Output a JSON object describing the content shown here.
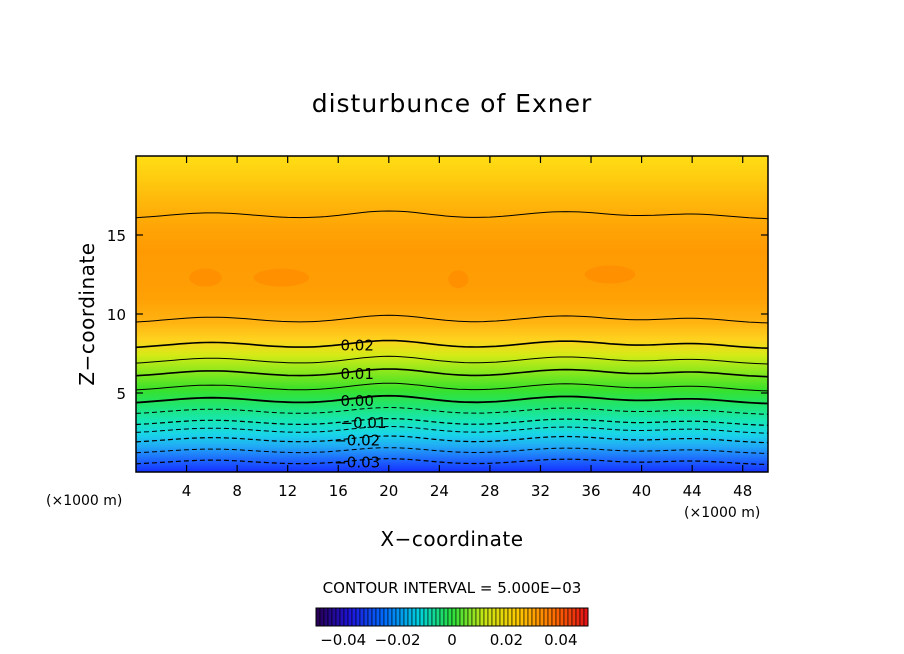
{
  "chart_data": {
    "type": "contour",
    "title": "disturbunce of Exner",
    "xlabel": "X−coordinate",
    "ylabel": "Z−coordinate",
    "x_unit": "(×1000 m)",
    "y_unit": "(×1000 m)",
    "xlim": [
      0,
      50
    ],
    "ylim": [
      0,
      20
    ],
    "x_ticks": [
      4,
      8,
      12,
      16,
      20,
      24,
      28,
      32,
      36,
      40,
      44,
      48
    ],
    "y_ticks": [
      5,
      10,
      15
    ],
    "contour_interval_text": "CONTOUR INTERVAL = 5.000E−03",
    "contour_interval": 0.005,
    "contour_labels": [
      {
        "text": "0.02",
        "x": 17.5,
        "z": 8.0,
        "value": 0.02
      },
      {
        "text": "0.01",
        "x": 17.5,
        "z": 6.2,
        "value": 0.01
      },
      {
        "text": "0.00",
        "x": 17.5,
        "z": 4.5,
        "value": 0.0
      },
      {
        "text": "−0.01",
        "x": 18.0,
        "z": 3.1,
        "value": -0.01
      },
      {
        "text": "−0.02",
        "x": 17.5,
        "z": 2.0,
        "value": -0.02
      },
      {
        "text": "−0.03",
        "x": 17.5,
        "z": 0.6,
        "value": -0.03
      }
    ],
    "colorbar": {
      "min": -0.05,
      "max": 0.05,
      "tick_labels": [
        "−0.04",
        "−0.02",
        "0",
        "0.02",
        "0.04"
      ],
      "tick_values": [
        -0.04,
        -0.02,
        0,
        0.02,
        0.04
      ]
    }
  }
}
